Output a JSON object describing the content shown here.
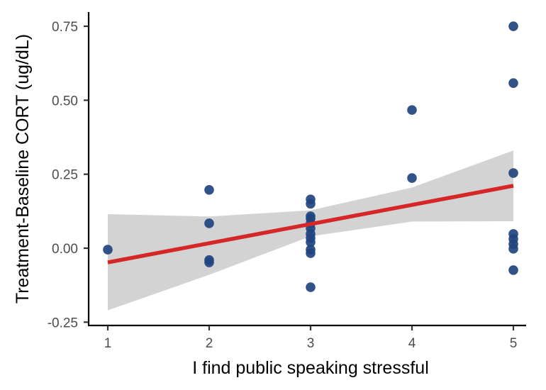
{
  "chart_data": {
    "type": "scatter",
    "title": "",
    "xlabel": "I find public speaking stressful",
    "ylabel": "Treatment-Baseline CORT (ug/dL)",
    "xlim": [
      0.82,
      5.2
    ],
    "ylim": [
      -0.27,
      0.8
    ],
    "x_ticks": [
      1,
      2,
      3,
      4,
      5
    ],
    "x_tick_labels": [
      "1",
      "2",
      "3",
      "4",
      "5"
    ],
    "y_ticks": [
      -0.25,
      0.0,
      0.25,
      0.5,
      0.75
    ],
    "y_tick_labels": [
      "-0.25",
      "0.00",
      "0.25",
      "0.50",
      "0.75"
    ],
    "grid": false,
    "legend": null,
    "colors": {
      "points": "#1f4480",
      "fit_line": "#d62728",
      "ci_band": "#d3d3d3",
      "axis": "#000000",
      "tick_text": "#4d4d4d"
    },
    "series": [
      {
        "name": "observations",
        "points": [
          {
            "x": 1,
            "y": -0.005
          },
          {
            "x": 2,
            "y": 0.197
          },
          {
            "x": 2,
            "y": 0.084
          },
          {
            "x": 2,
            "y": -0.04
          },
          {
            "x": 2,
            "y": -0.048
          },
          {
            "x": 3,
            "y": 0.165
          },
          {
            "x": 3,
            "y": 0.15
          },
          {
            "x": 3,
            "y": 0.108
          },
          {
            "x": 3,
            "y": 0.1
          },
          {
            "x": 3,
            "y": 0.084
          },
          {
            "x": 3,
            "y": 0.067
          },
          {
            "x": 3,
            "y": 0.048
          },
          {
            "x": 3,
            "y": 0.034
          },
          {
            "x": 3,
            "y": 0.02
          },
          {
            "x": 3,
            "y": -0.005
          },
          {
            "x": 3,
            "y": -0.017
          },
          {
            "x": 3,
            "y": -0.132
          },
          {
            "x": 4,
            "y": 0.467
          },
          {
            "x": 4,
            "y": 0.237
          },
          {
            "x": 5,
            "y": 0.75
          },
          {
            "x": 5,
            "y": 0.558
          },
          {
            "x": 5,
            "y": 0.254
          },
          {
            "x": 5,
            "y": 0.048
          },
          {
            "x": 5,
            "y": 0.031
          },
          {
            "x": 5,
            "y": 0.014
          },
          {
            "x": 5,
            "y": -0.002
          },
          {
            "x": 5,
            "y": -0.074
          }
        ]
      }
    ],
    "fit": {
      "type": "linear",
      "x": [
        1,
        5
      ],
      "y": [
        -0.048,
        0.211
      ],
      "ci": {
        "x": [
          1,
          2,
          3,
          4,
          5
        ],
        "upper": [
          0.115,
          0.107,
          0.128,
          0.205,
          0.33
        ],
        "lower": [
          -0.21,
          -0.09,
          0.04,
          0.09,
          0.091
        ]
      }
    }
  }
}
